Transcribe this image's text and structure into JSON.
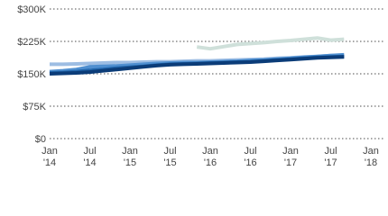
{
  "chart_data": {
    "type": "line",
    "x": [
      "2014-01",
      "2014-03",
      "2014-05",
      "2014-07",
      "2014-09",
      "2014-11",
      "2015-01",
      "2015-03",
      "2015-05",
      "2015-07",
      "2015-09",
      "2015-11",
      "2016-01",
      "2016-03",
      "2016-05",
      "2016-07",
      "2016-09",
      "2016-11",
      "2017-01",
      "2017-03",
      "2017-05",
      "2017-07",
      "2017-09"
    ],
    "xlim": [
      "2014-01",
      "2018-01"
    ],
    "xticks": [
      {
        "value": "2014-01",
        "label": "Jan '14"
      },
      {
        "value": "2014-07",
        "label": "Jul '14"
      },
      {
        "value": "2015-01",
        "label": "Jan '15"
      },
      {
        "value": "2015-07",
        "label": "Jul '15"
      },
      {
        "value": "2016-01",
        "label": "Jan '16"
      },
      {
        "value": "2016-07",
        "label": "Jul '16"
      },
      {
        "value": "2017-01",
        "label": "Jan '17"
      },
      {
        "value": "2017-07",
        "label": "Jul '17"
      },
      {
        "value": "2018-01",
        "label": "Jan '18"
      }
    ],
    "ylim": [
      0,
      300000
    ],
    "yticks": [
      {
        "value": 0,
        "label": "$0"
      },
      {
        "value": 75000,
        "label": "$75K"
      },
      {
        "value": 150000,
        "label": "$150K"
      },
      {
        "value": 225000,
        "label": "$225K"
      },
      {
        "value": 300000,
        "label": "$300K"
      }
    ],
    "grid": true,
    "series": [
      {
        "color": "#cfe0da",
        "values": [
          null,
          null,
          null,
          null,
          null,
          null,
          null,
          null,
          null,
          null,
          null,
          212000,
          208000,
          213000,
          218000,
          220000,
          222000,
          225000,
          227000,
          230000,
          233000,
          228000,
          230000
        ]
      },
      {
        "color": "#9dbde3",
        "values": [
          172000,
          172000,
          173000,
          174000,
          175000,
          176000,
          176000,
          177000,
          178000,
          178000,
          179000,
          180000,
          180000,
          181000,
          182000,
          183000,
          184000,
          186000,
          187000,
          189000,
          190000,
          192000,
          193000
        ]
      },
      {
        "color": "#4f8fd0",
        "values": [
          155000,
          157000,
          160000,
          166000,
          167000,
          168000,
          170000,
          172000,
          174000,
          175000,
          176000,
          176000,
          177000,
          178000,
          179000,
          181000,
          182000,
          184000,
          186000,
          188000,
          190000,
          192000,
          194000
        ]
      },
      {
        "color": "#2166ac",
        "values": [
          152000,
          153000,
          155000,
          158000,
          160000,
          163000,
          165000,
          167000,
          170000,
          172000,
          173000,
          174000,
          175000,
          176000,
          177000,
          178000,
          180000,
          182000,
          184000,
          186000,
          188000,
          189000,
          190000
        ]
      },
      {
        "color": "#0b3c78",
        "values": [
          150000,
          151000,
          152000,
          154000,
          157000,
          160000,
          163000,
          166000,
          169000,
          171000,
          172000,
          173000,
          174000,
          175000,
          176000,
          177000,
          179000,
          181000,
          183000,
          185000,
          187000,
          188000,
          189000
        ]
      }
    ]
  }
}
